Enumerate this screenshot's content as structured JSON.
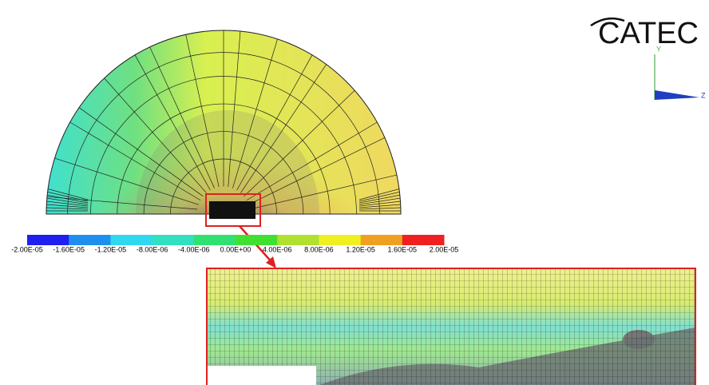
{
  "logo": {
    "text": "CATEC"
  },
  "axes_triad": {
    "y_label": "Y",
    "z_label": "Z"
  },
  "colorbar": {
    "colors": [
      "#1f1ff0",
      "#1f8fef",
      "#2fd8ef",
      "#30e0c0",
      "#30e070",
      "#40e030",
      "#b0e030",
      "#f0f020",
      "#f0a020",
      "#f02020"
    ],
    "labels": [
      "-2.00E-05",
      "-1.60E-05",
      "-1.20E-05",
      "-8.00E-06",
      "-4.00E-06",
      "0.00E+00",
      "4.00E-06",
      "8.00E-06",
      "1.20E-05",
      "1.60E-05",
      "2.00E-05"
    ]
  }
}
